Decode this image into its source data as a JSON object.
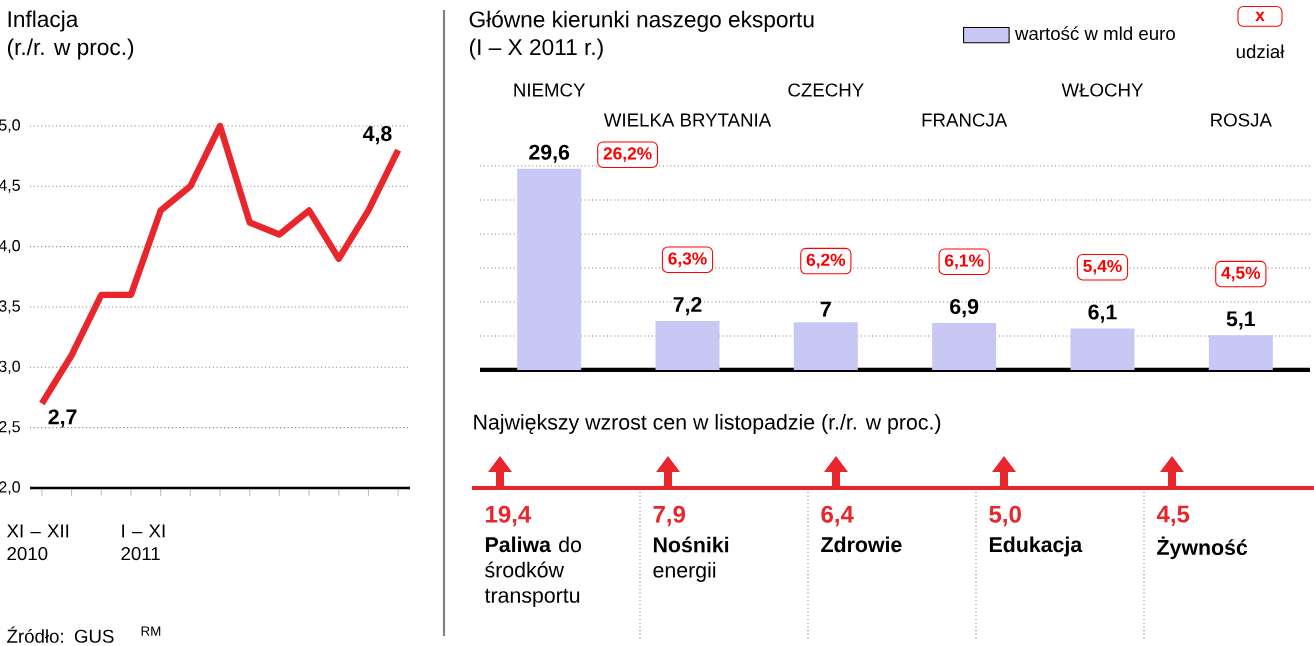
{
  "chart_data": [
    {
      "type": "line",
      "title": "Inflacja",
      "subtitle": "(r./r. w proc.)",
      "categories": [
        null,
        null,
        null,
        null,
        null,
        null,
        null,
        null,
        null,
        null,
        null,
        null,
        null
      ],
      "series": [
        {
          "color": "#e8262b",
          "values": [
            2.7,
            3.1,
            3.6,
            3.6,
            4.3,
            4.5,
            5.0,
            4.2,
            4.1,
            4.3,
            3.9,
            4.3,
            4.8
          ],
          "value_labels": [
            "2,7",
            null,
            null,
            null,
            null,
            null,
            null,
            null,
            null,
            null,
            null,
            null,
            "4,8"
          ]
        }
      ],
      "ylim": [
        2,
        5
      ],
      "yticks": [
        {
          "value": 2,
          "label": "2,0"
        },
        {
          "value": 2.5,
          "label": "2,5"
        },
        {
          "value": 3,
          "label": "3,0"
        },
        {
          "value": 3.5,
          "label": "3,5"
        },
        {
          "value": 4,
          "label": "4,0"
        },
        {
          "value": 4.5,
          "label": "4,5"
        },
        {
          "value": 5,
          "label": "5,0"
        }
      ],
      "grid": "y",
      "annotations": [
        "XI – XII 2010",
        "I – XI 2011",
        "Źródło: GUS",
        "RM"
      ]
    },
    {
      "type": "bar",
      "title": "Główne kierunki naszego eksportu",
      "subtitle": "(I – X 2011 r.)",
      "categories": [
        "NIEMCY",
        "WIELKA BRYTANIA",
        "CZECHY",
        "FRANCJA",
        "WŁOCHY",
        "ROSJA"
      ],
      "series": [
        {
          "name": "wartość w mld euro",
          "color": "#c9c8f4",
          "values": [
            29.6,
            7.2,
            7,
            6.9,
            6.1,
            5.1
          ],
          "value_labels": [
            "29,6",
            "7,2",
            "7",
            "6,9",
            "6,1",
            "5,1"
          ]
        }
      ],
      "ylim": [
        0,
        30
      ],
      "yticks": [
        {
          "value": 0,
          "label": null
        },
        {
          "value": 5,
          "label": null
        },
        {
          "value": 10,
          "label": null
        },
        {
          "value": 15,
          "label": null
        },
        {
          "value": 20,
          "label": null
        },
        {
          "value": 25,
          "label": null
        },
        {
          "value": 30,
          "label": null
        }
      ],
      "grid": "y",
      "legend": "top right",
      "annotations": [
        "26,2%",
        "6,3%",
        "6,2%",
        "6,1%",
        "5,4%",
        "4,5%",
        "x",
        "udział"
      ]
    },
    {
      "type": "other",
      "title": "Największy wzrost cen w listopadzie (r./r. w proc.)",
      "categories": [
        "**Paliwa** do środków transportu",
        "**Nośniki** energii",
        "**Zdrowie**",
        "**Edukacja**",
        "**Żywność**"
      ],
      "value_labels": [
        "19,4",
        "7,9",
        "6,4",
        "5,0",
        "4,5"
      ],
      "color": "#e8262b"
    }
  ]
}
